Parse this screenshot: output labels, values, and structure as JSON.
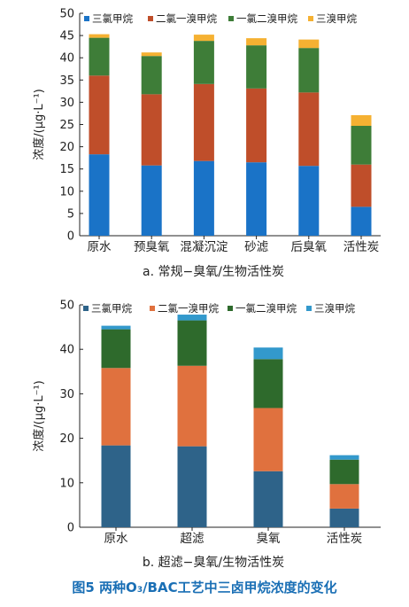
{
  "figure_caption": {
    "prefix": "图5   两种O",
    "sub": "3",
    "suffix": "/BAC工艺中三卤甲烷浓度的变化"
  },
  "colors": {
    "chart_a": [
      "#1a73c7",
      "#bf4e2a",
      "#3e7d38",
      "#f5b132"
    ],
    "chart_b": [
      "#2e6389",
      "#e0713e",
      "#2e6a2c",
      "#3399cc"
    ]
  },
  "chart_data": [
    {
      "type": "bar",
      "stacked": true,
      "title": "a. 常规−臭氧/生物活性炭",
      "ylabel": "浓度/(μg·L⁻¹)",
      "ylim": [
        0,
        50
      ],
      "yticks": [
        0,
        5,
        10,
        15,
        20,
        25,
        30,
        35,
        40,
        45,
        50
      ],
      "grid": false,
      "legend_position": "top",
      "categories": [
        "原水",
        "预臭氧",
        "混凝沉淀",
        "砂滤",
        "后臭氧",
        "活性炭"
      ],
      "series": [
        {
          "name": "三氯甲烷",
          "values": [
            18.3,
            15.8,
            16.8,
            16.5,
            15.7,
            6.5
          ]
        },
        {
          "name": "二氯一溴甲烷",
          "values": [
            17.7,
            16.0,
            17.3,
            16.6,
            16.5,
            9.5
          ]
        },
        {
          "name": "一氯二溴甲烷",
          "values": [
            8.5,
            8.6,
            9.7,
            9.7,
            10.0,
            8.7
          ]
        },
        {
          "name": "三溴甲烷",
          "values": [
            0.8,
            0.8,
            1.4,
            1.6,
            1.9,
            2.4
          ]
        }
      ]
    },
    {
      "type": "bar",
      "stacked": true,
      "title": "b. 超滤−臭氧/生物活性炭",
      "ylabel": "浓度/(μg·L⁻¹)",
      "ylim": [
        0,
        50
      ],
      "yticks": [
        0,
        10,
        20,
        30,
        40,
        50
      ],
      "grid": false,
      "legend_position": "top",
      "categories": [
        "原水",
        "超滤",
        "臭氧",
        "活性炭"
      ],
      "series": [
        {
          "name": "三氯甲烷",
          "values": [
            18.4,
            18.2,
            12.6,
            4.2
          ]
        },
        {
          "name": "二氯一溴甲烷",
          "values": [
            17.4,
            18.1,
            14.2,
            5.5
          ]
        },
        {
          "name": "一氯二溴甲烷",
          "values": [
            8.7,
            10.2,
            11.0,
            5.5
          ]
        },
        {
          "name": "三溴甲烷",
          "values": [
            0.8,
            1.3,
            2.6,
            1.0
          ]
        }
      ]
    }
  ]
}
